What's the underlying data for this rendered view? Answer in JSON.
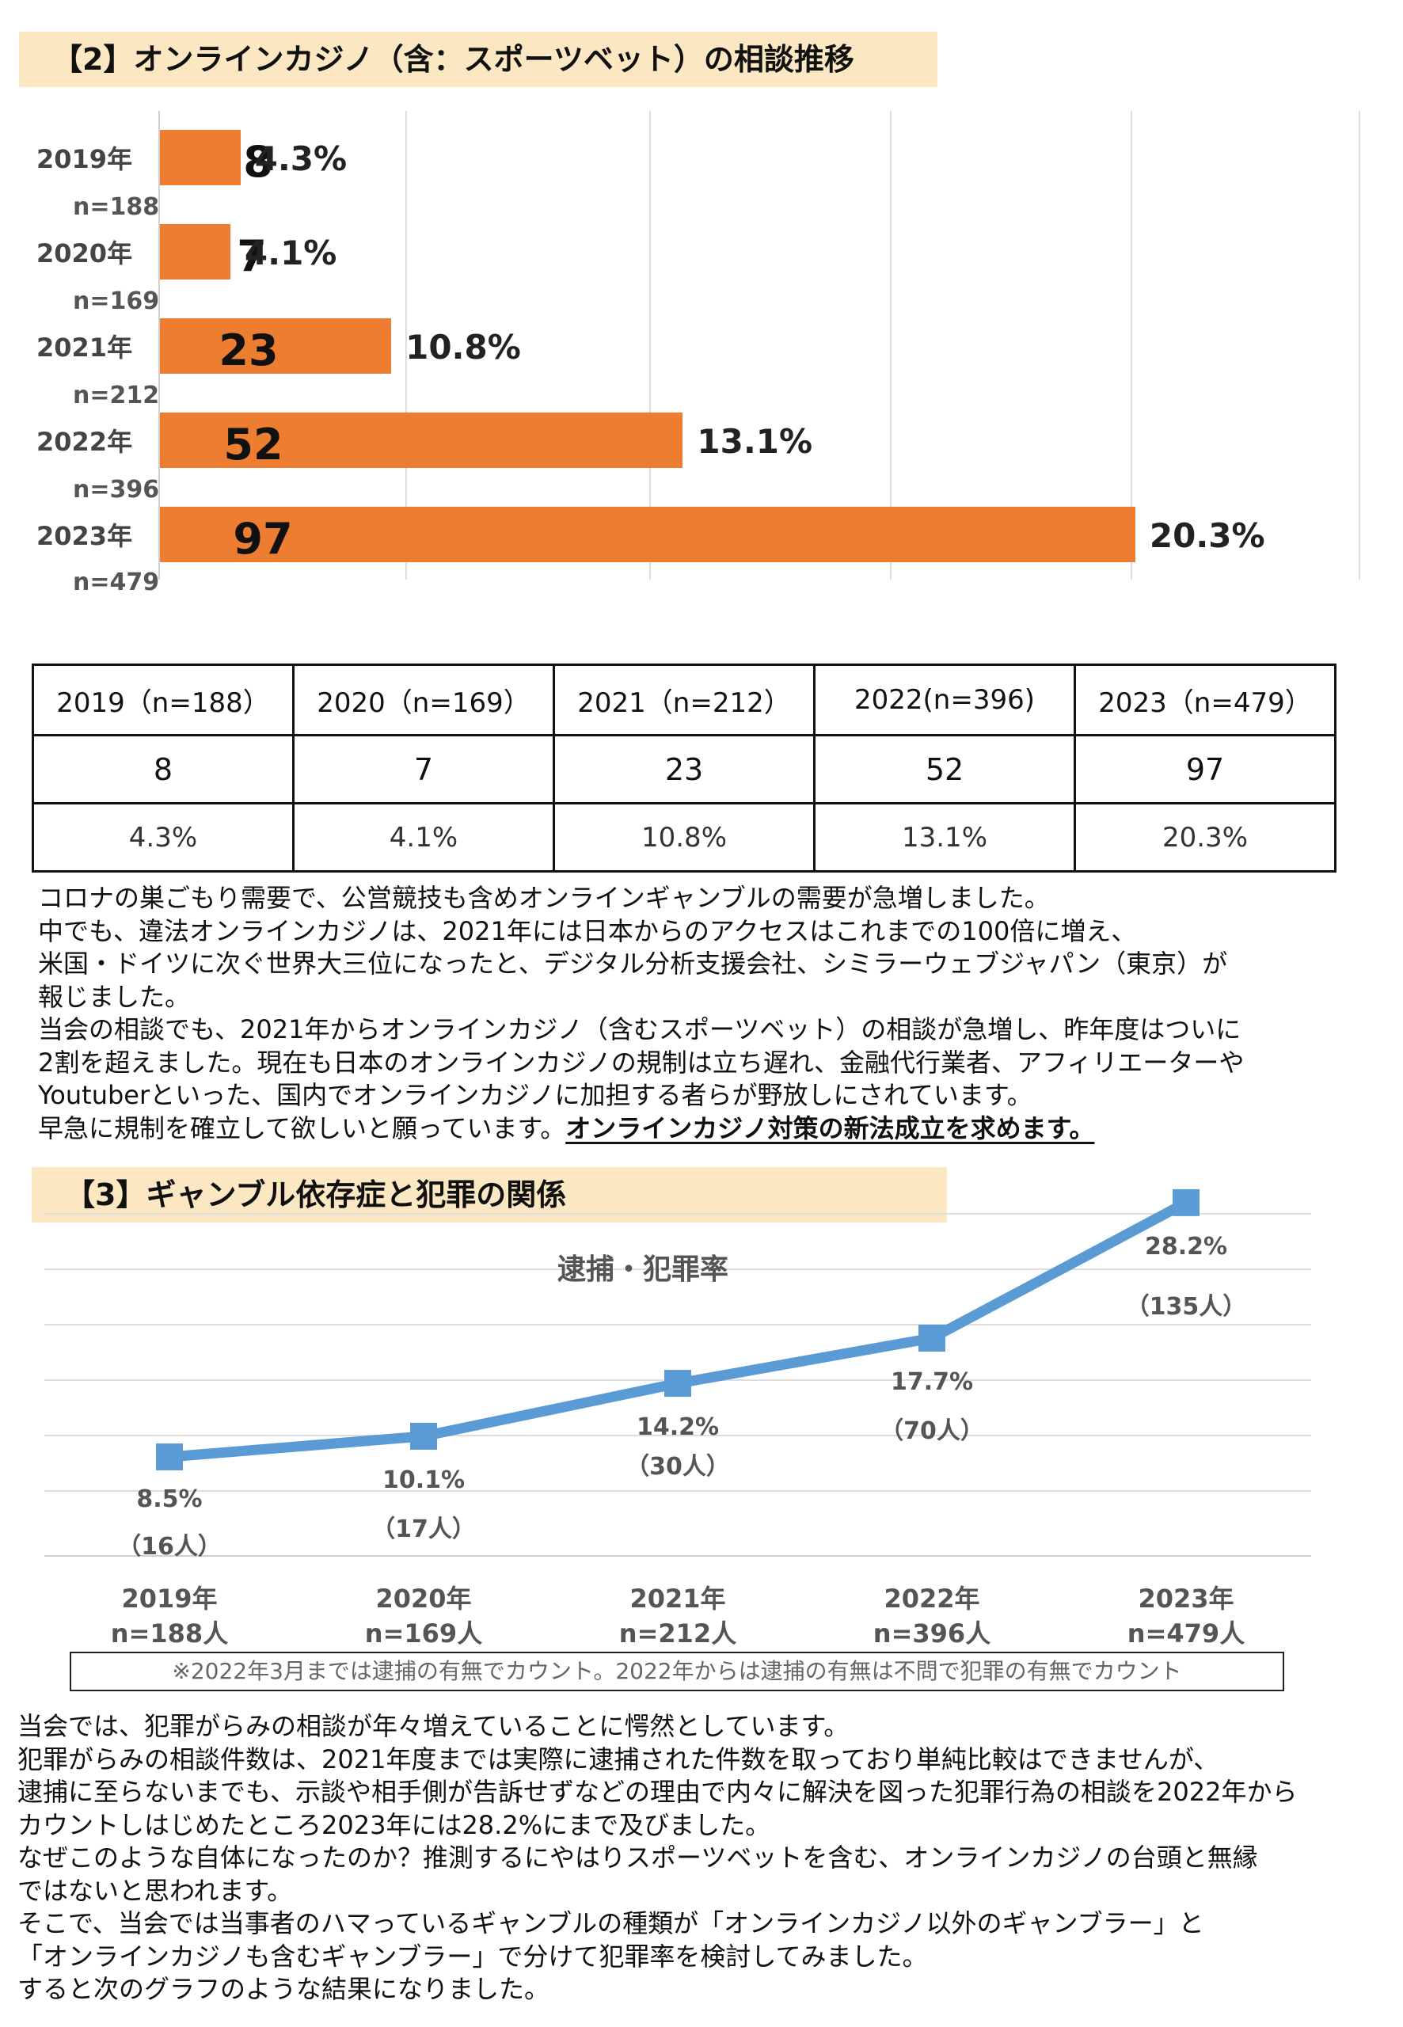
{
  "section2": {
    "title": "【2】オンラインカジノ（含：スポーツベット）の相談推移",
    "bars": [
      {
        "year": "2019年",
        "n": "n=188",
        "count": "8",
        "pct": "4.3%",
        "count_value": 8
      },
      {
        "year": "2020年",
        "n": "n=169",
        "count": "7",
        "pct": "4.1%",
        "count_value": 7
      },
      {
        "year": "2021年",
        "n": "n=212",
        "count": "23",
        "pct": "10.8%",
        "count_value": 23
      },
      {
        "year": "2022年",
        "n": "n=396",
        "count": "52",
        "pct": "13.1%",
        "count_value": 52
      },
      {
        "year": "2023年",
        "n": "n=479",
        "count": "97",
        "pct": "20.3%",
        "count_value": 97
      }
    ],
    "bar_color": "#ed7d31",
    "table": {
      "headers": [
        "2019（n=188）",
        "2020（n=169）",
        "2021（n=212）",
        "2022(n=396)",
        "2023（n=479）"
      ],
      "counts": [
        "8",
        "7",
        "23",
        "52",
        "97"
      ],
      "percents": [
        "4.3%",
        "4.1%",
        "10.8%",
        "13.1%",
        "20.3%"
      ]
    },
    "paragraph": [
      "コロナの巣ごもり需要で、公営競技も含めオンラインギャンブルの需要が急増しました。",
      "中でも、違法オンラインカジノは、2021年には日本からのアクセスはこれまでの100倍に増え、",
      "米国・ドイツに次ぐ世界大三位になったと、デジタル分析支援会社、シミラーウェブジャパン（東京）が",
      "報じました。",
      "当会の相談でも、2021年からオンラインカジノ（含むスポーツベット）の相談が急増し、昨年度はついに",
      "2割を超えました。現在も日本のオンラインカジノの規制は立ち遅れ、金融代行業者、アフィリエーターや",
      "Youtuberといった、国内でオンラインカジノに加担する者らが野放しにされています。"
    ],
    "last_line_plain": "早急に規制を確立して欲しいと願っています。",
    "last_line_emphasis": "オンラインカジノ対策の新法成立を求めます。"
  },
  "section3": {
    "title": "【3】ギャンブル依存症と犯罪の関係",
    "note": "※2022年3月までは逮捕の有無でカウント。2022年からは逮捕の有無は不問で犯罪の有無でカウント",
    "paragraph": [
      "当会では、犯罪がらみの相談が年々増えていることに愕然としています。",
      "犯罪がらみの相談件数は、2021年度までは実際に逮捕された件数を取っており単純比較はできませんが、",
      "逮捕に至らないまでも、示談や相手側が告訴せずなどの理由で内々に解決を図った犯罪行為の相談を2022年から",
      "カウントしはじめたところ2023年には28.2%にまで及びました。",
      "なぜこのような自体になったのか？推測するにやはりスポーツベットを含む、オンラインカジノの台頭と無縁",
      "ではないと思われます。",
      "そこで、当会では当事者のハマっているギャンブルの種類が「オンラインカジノ以外のギャンブラー」と",
      "「オンラインカジノも含むギャンブラー」で分けて犯罪率を検討してみました。",
      "すると次のグラフのような結果になりました。"
    ]
  },
  "chart_data": [
    {
      "type": "bar",
      "title": "【2】オンラインカジノ（含：スポーツベット）の相談推移",
      "orientation": "horizontal",
      "categories": [
        "2019年",
        "2020年",
        "2021年",
        "2022年",
        "2023年"
      ],
      "category_notes": [
        "n=188",
        "n=169",
        "n=212",
        "n=396",
        "n=479"
      ],
      "values": [
        8,
        7,
        23,
        52,
        97
      ],
      "data_labels": [
        "8",
        "7",
        "23",
        "52",
        "97"
      ],
      "percent_labels": [
        "4.3%",
        "4.1%",
        "10.8%",
        "13.1%",
        "20.3%"
      ],
      "xlim": [
        0,
        120
      ],
      "grid": true,
      "color": "#ed7d31"
    },
    {
      "type": "line",
      "title": "逮捕・犯罪率",
      "categories": [
        "2019年",
        "2020年",
        "2021年",
        "2022年",
        "2023年"
      ],
      "category_notes": [
        "n=188人",
        "n=169人",
        "n=212人",
        "n=396人",
        "n=479人"
      ],
      "values": [
        8.5,
        10.1,
        14.2,
        17.7,
        28.2
      ],
      "value_labels": [
        "8.5%",
        "10.1%",
        "14.2%",
        "17.7%",
        "28.2%"
      ],
      "count_labels": [
        "（16人）",
        "（17人）",
        "（30人）",
        "（70人）",
        "（135人）"
      ],
      "ylim": [
        5,
        30
      ],
      "grid": true,
      "color": "#5b9bd5"
    }
  ]
}
